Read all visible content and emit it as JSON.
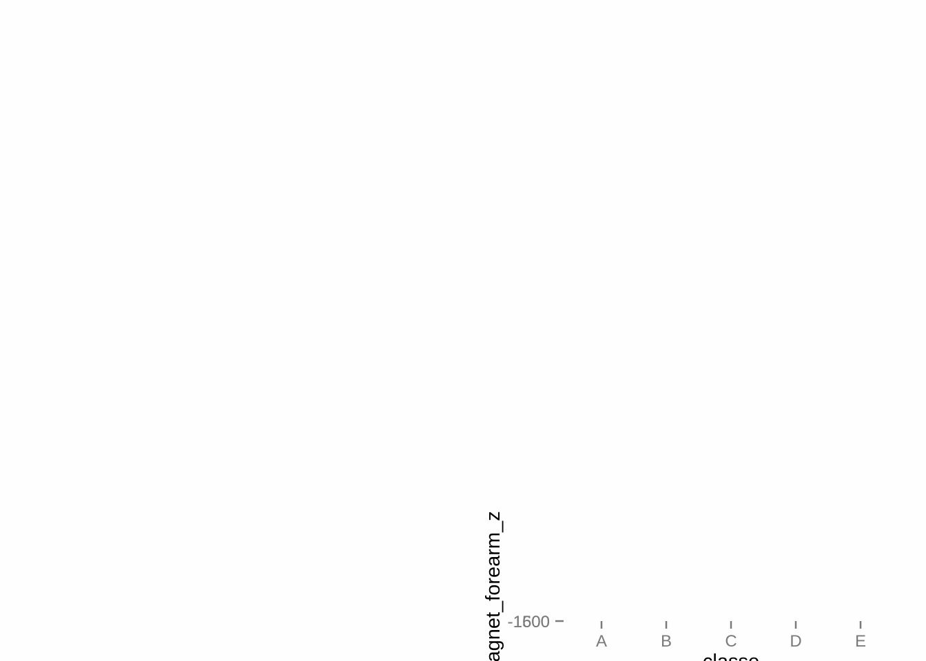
{
  "chart_data": {
    "type": "scatter",
    "title": "",
    "xlabel": "classe",
    "ylabel": "magnet_forearm_z",
    "categories": [
      "A",
      "B",
      "C",
      "D",
      "E"
    ],
    "y_tick_labels": [
      "-1500",
      "-1600"
    ],
    "series": [],
    "grid": false,
    "legend": "none",
    "colors": {
      "tick": "#7a7a7a",
      "axis_title": "#000000",
      "background": "#fefefe"
    }
  }
}
